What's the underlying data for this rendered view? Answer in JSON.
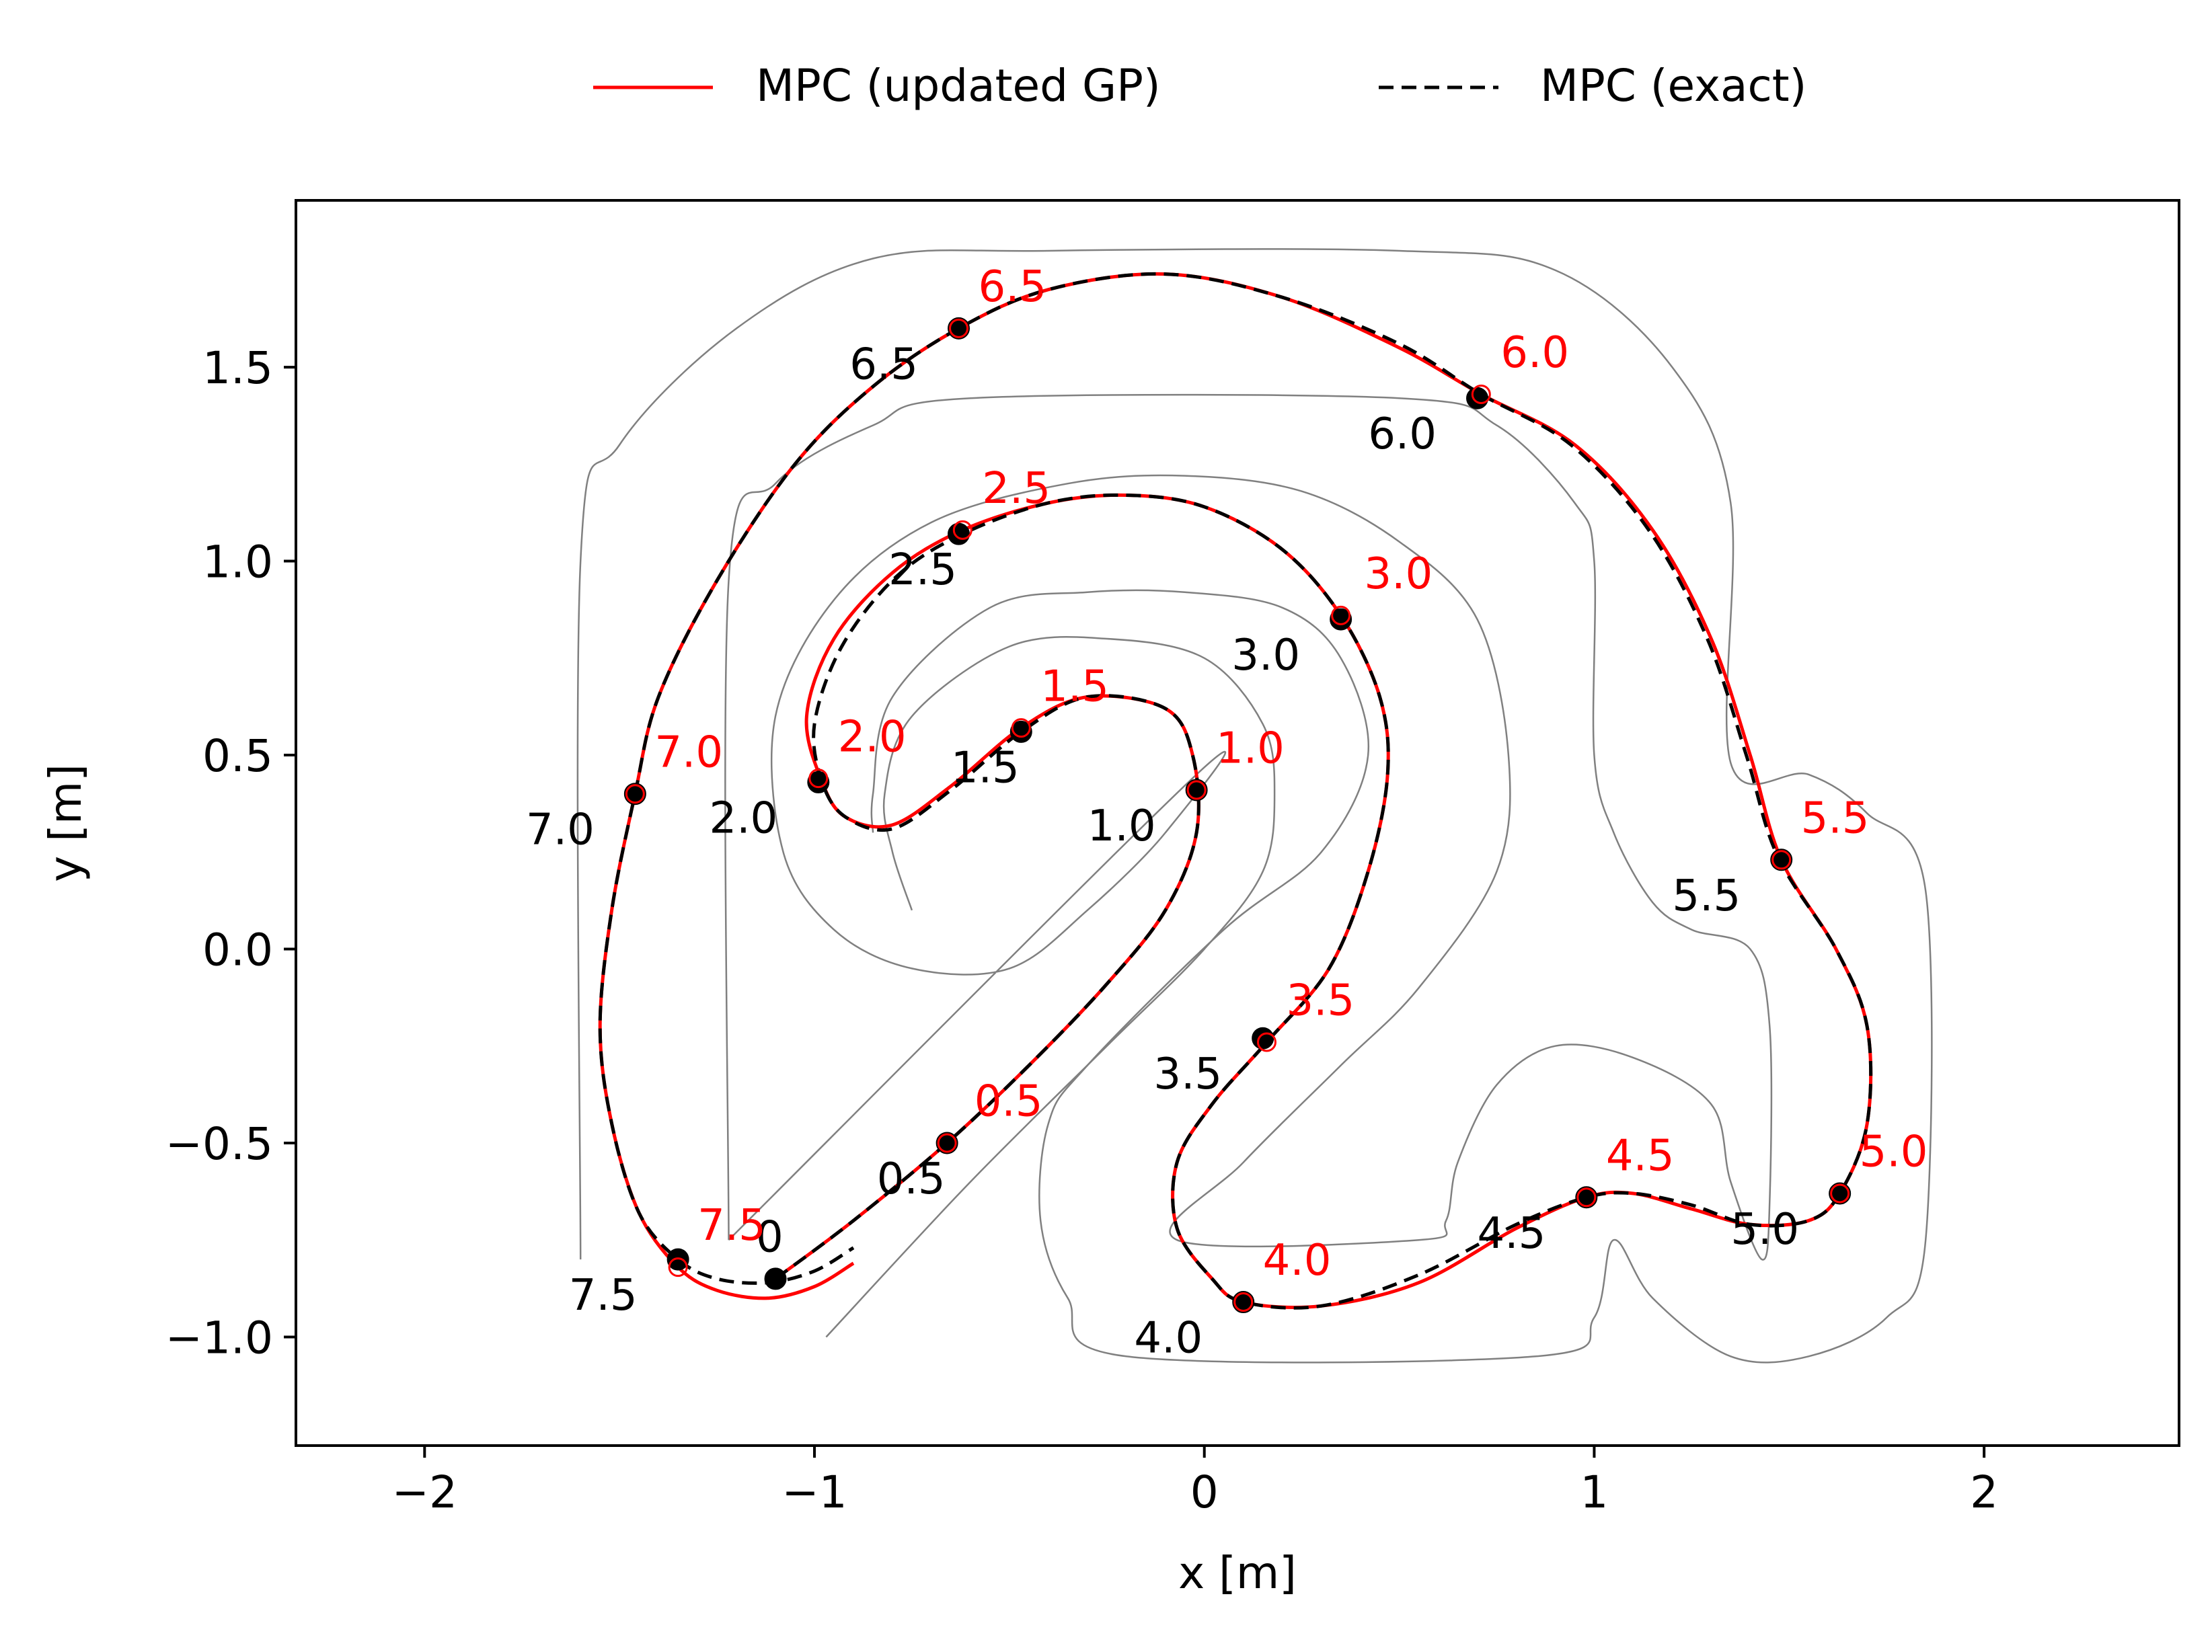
{
  "colors": {
    "gp": "#ff0000",
    "exact": "#000000",
    "track": "#808080",
    "axes": "#000000"
  },
  "legend": {
    "gp_label": "MPC (updated GP)",
    "exact_label": "MPC (exact)",
    "placement": "top-center-outside"
  },
  "chart_data": {
    "type": "line",
    "title": "",
    "xlabel": "x [m]",
    "ylabel": "y [m]",
    "xlim": [
      -2.33,
      2.5
    ],
    "ylim": [
      -1.28,
      1.93
    ],
    "grid": false,
    "xticks": [
      {
        "v": -2,
        "label": "−2"
      },
      {
        "v": -1,
        "label": "−1"
      },
      {
        "v": 0,
        "label": "0"
      },
      {
        "v": 1,
        "label": "1"
      },
      {
        "v": 2,
        "label": "2"
      }
    ],
    "yticks": [
      {
        "v": -1.0,
        "label": "−1.0"
      },
      {
        "v": -0.5,
        "label": "−0.5"
      },
      {
        "v": 0.0,
        "label": "0.0"
      },
      {
        "v": 0.5,
        "label": "0.5"
      },
      {
        "v": 1.0,
        "label": "1.0"
      },
      {
        "v": 1.5,
        "label": "1.5"
      }
    ],
    "series": [
      {
        "name": "MPC (updated GP)",
        "style": "solid",
        "color": "#ff0000",
        "points": [
          [
            -1.1,
            -0.85
          ],
          [
            -0.9,
            -0.7
          ],
          [
            -0.66,
            -0.5
          ],
          [
            -0.45,
            -0.3
          ],
          [
            -0.25,
            -0.09
          ],
          [
            -0.1,
            0.1
          ],
          [
            -0.02,
            0.3
          ],
          [
            -0.03,
            0.5
          ],
          [
            -0.1,
            0.62
          ],
          [
            -0.3,
            0.65
          ],
          [
            -0.47,
            0.57
          ],
          [
            -0.65,
            0.42
          ],
          [
            -0.8,
            0.32
          ],
          [
            -0.92,
            0.34
          ],
          [
            -0.98,
            0.43
          ],
          [
            -1.02,
            0.6
          ],
          [
            -0.95,
            0.8
          ],
          [
            -0.8,
            0.97
          ],
          [
            -0.62,
            1.08
          ],
          [
            -0.4,
            1.15
          ],
          [
            -0.2,
            1.17
          ],
          [
            0.0,
            1.14
          ],
          [
            0.2,
            1.03
          ],
          [
            0.35,
            0.86
          ],
          [
            0.45,
            0.65
          ],
          [
            0.47,
            0.45
          ],
          [
            0.42,
            0.2
          ],
          [
            0.32,
            -0.05
          ],
          [
            0.16,
            -0.24
          ],
          [
            0.02,
            -0.4
          ],
          [
            -0.07,
            -0.55
          ],
          [
            -0.07,
            -0.72
          ],
          [
            0.02,
            -0.85
          ],
          [
            0.1,
            -0.91
          ],
          [
            0.3,
            -0.92
          ],
          [
            0.55,
            -0.86
          ],
          [
            0.8,
            -0.72
          ],
          [
            0.98,
            -0.64
          ],
          [
            1.1,
            -0.63
          ],
          [
            1.25,
            -0.67
          ],
          [
            1.4,
            -0.71
          ],
          [
            1.55,
            -0.7
          ],
          [
            1.63,
            -0.63
          ],
          [
            1.7,
            -0.45
          ],
          [
            1.7,
            -0.2
          ],
          [
            1.62,
            0.0
          ],
          [
            1.48,
            0.23
          ],
          [
            1.4,
            0.5
          ],
          [
            1.3,
            0.8
          ],
          [
            1.15,
            1.08
          ],
          [
            0.95,
            1.3
          ],
          [
            0.71,
            1.43
          ],
          [
            0.5,
            1.55
          ],
          [
            0.2,
            1.68
          ],
          [
            -0.1,
            1.74
          ],
          [
            -0.4,
            1.7
          ],
          [
            -0.63,
            1.6
          ],
          [
            -0.85,
            1.45
          ],
          [
            -1.05,
            1.25
          ],
          [
            -1.25,
            0.95
          ],
          [
            -1.4,
            0.65
          ],
          [
            -1.46,
            0.4
          ],
          [
            -1.52,
            0.1
          ],
          [
            -1.55,
            -0.2
          ],
          [
            -1.52,
            -0.45
          ],
          [
            -1.45,
            -0.68
          ],
          [
            -1.35,
            -0.82
          ],
          [
            -1.25,
            -0.88
          ],
          [
            -1.12,
            -0.9
          ],
          [
            -1.0,
            -0.87
          ],
          [
            -0.9,
            -0.81
          ]
        ]
      },
      {
        "name": "MPC (exact)",
        "style": "dashed",
        "color": "#000000",
        "points": [
          [
            -1.1,
            -0.85
          ],
          [
            -0.9,
            -0.7
          ],
          [
            -0.66,
            -0.5
          ],
          [
            -0.45,
            -0.3
          ],
          [
            -0.25,
            -0.09
          ],
          [
            -0.1,
            0.1
          ],
          [
            -0.02,
            0.3
          ],
          [
            -0.03,
            0.5
          ],
          [
            -0.1,
            0.62
          ],
          [
            -0.3,
            0.65
          ],
          [
            -0.47,
            0.56
          ],
          [
            -0.65,
            0.41
          ],
          [
            -0.8,
            0.31
          ],
          [
            -0.92,
            0.34
          ],
          [
            -0.98,
            0.43
          ],
          [
            -1.0,
            0.58
          ],
          [
            -0.93,
            0.78
          ],
          [
            -0.79,
            0.96
          ],
          [
            -0.62,
            1.07
          ],
          [
            -0.4,
            1.15
          ],
          [
            -0.2,
            1.17
          ],
          [
            0.0,
            1.14
          ],
          [
            0.2,
            1.03
          ],
          [
            0.35,
            0.86
          ],
          [
            0.45,
            0.65
          ],
          [
            0.47,
            0.45
          ],
          [
            0.42,
            0.2
          ],
          [
            0.32,
            -0.05
          ],
          [
            0.16,
            -0.24
          ],
          [
            0.02,
            -0.4
          ],
          [
            -0.07,
            -0.55
          ],
          [
            -0.07,
            -0.72
          ],
          [
            0.02,
            -0.85
          ],
          [
            0.1,
            -0.91
          ],
          [
            0.3,
            -0.92
          ],
          [
            0.55,
            -0.84
          ],
          [
            0.8,
            -0.71
          ],
          [
            0.98,
            -0.64
          ],
          [
            1.1,
            -0.63
          ],
          [
            1.25,
            -0.66
          ],
          [
            1.4,
            -0.71
          ],
          [
            1.55,
            -0.7
          ],
          [
            1.63,
            -0.63
          ],
          [
            1.7,
            -0.45
          ],
          [
            1.7,
            -0.2
          ],
          [
            1.62,
            0.0
          ],
          [
            1.47,
            0.24
          ],
          [
            1.39,
            0.5
          ],
          [
            1.29,
            0.8
          ],
          [
            1.14,
            1.08
          ],
          [
            0.94,
            1.3
          ],
          [
            0.71,
            1.43
          ],
          [
            0.5,
            1.56
          ],
          [
            0.2,
            1.68
          ],
          [
            -0.1,
            1.74
          ],
          [
            -0.4,
            1.7
          ],
          [
            -0.63,
            1.6
          ],
          [
            -0.85,
            1.45
          ],
          [
            -1.05,
            1.25
          ],
          [
            -1.25,
            0.95
          ],
          [
            -1.4,
            0.65
          ],
          [
            -1.46,
            0.4
          ],
          [
            -1.52,
            0.1
          ],
          [
            -1.55,
            -0.2
          ],
          [
            -1.52,
            -0.45
          ],
          [
            -1.45,
            -0.68
          ],
          [
            -1.35,
            -0.8
          ],
          [
            -1.25,
            -0.85
          ],
          [
            -1.12,
            -0.86
          ],
          [
            -1.0,
            -0.83
          ],
          [
            -0.9,
            -0.77
          ]
        ]
      }
    ],
    "markers": {
      "gp": [
        {
          "x": -0.66,
          "y": -0.5,
          "label": "0.5",
          "lx": -0.59,
          "ly": -0.43
        },
        {
          "x": -0.02,
          "y": 0.41,
          "label": "1.0",
          "lx": 0.03,
          "ly": 0.48
        },
        {
          "x": -0.47,
          "y": 0.57,
          "label": "1.5",
          "lx": -0.42,
          "ly": 0.64
        },
        {
          "x": -0.99,
          "y": 0.44,
          "label": "2.0",
          "lx": -0.94,
          "ly": 0.51
        },
        {
          "x": -0.62,
          "y": 1.08,
          "label": "2.5",
          "lx": -0.57,
          "ly": 1.15
        },
        {
          "x": 0.35,
          "y": 0.86,
          "label": "3.0",
          "lx": 0.41,
          "ly": 0.93
        },
        {
          "x": 0.16,
          "y": -0.24,
          "label": "3.5",
          "lx": 0.21,
          "ly": -0.17
        },
        {
          "x": 0.1,
          "y": -0.91,
          "label": "4.0",
          "lx": 0.15,
          "ly": -0.84
        },
        {
          "x": 0.98,
          "y": -0.64,
          "label": "4.5",
          "lx": 1.03,
          "ly": -0.57
        },
        {
          "x": 1.63,
          "y": -0.63,
          "label": "5.0",
          "lx": 1.68,
          "ly": -0.56
        },
        {
          "x": 1.48,
          "y": 0.23,
          "label": "5.5",
          "lx": 1.53,
          "ly": 0.3
        },
        {
          "x": 0.71,
          "y": 1.43,
          "label": "6.0",
          "lx": 0.76,
          "ly": 1.5
        },
        {
          "x": -0.63,
          "y": 1.6,
          "label": "6.5",
          "lx": -0.58,
          "ly": 1.67
        },
        {
          "x": -1.46,
          "y": 0.4,
          "label": "7.0",
          "lx": -1.41,
          "ly": 0.47
        },
        {
          "x": -1.35,
          "y": -0.82,
          "label": "7.5",
          "lx": -1.3,
          "ly": -0.75
        }
      ],
      "exact": [
        {
          "x": -1.1,
          "y": -0.85,
          "label": "0",
          "lx": -1.15,
          "ly": -0.78
        },
        {
          "x": -0.66,
          "y": -0.5,
          "label": "0.5",
          "lx": -0.84,
          "ly": -0.63
        },
        {
          "x": -0.02,
          "y": 0.41,
          "label": "1.0",
          "lx": -0.3,
          "ly": 0.28
        },
        {
          "x": -0.47,
          "y": 0.56,
          "label": "1.5",
          "lx": -0.65,
          "ly": 0.43
        },
        {
          "x": -0.99,
          "y": 0.43,
          "label": "2.0",
          "lx": -1.27,
          "ly": 0.3
        },
        {
          "x": -0.63,
          "y": 1.07,
          "label": "2.5",
          "lx": -0.81,
          "ly": 0.94
        },
        {
          "x": 0.35,
          "y": 0.85,
          "label": "3.0",
          "lx": 0.07,
          "ly": 0.72
        },
        {
          "x": 0.15,
          "y": -0.23,
          "label": "3.5",
          "lx": -0.13,
          "ly": -0.36
        },
        {
          "x": 0.1,
          "y": -0.91,
          "label": "4.0",
          "lx": -0.18,
          "ly": -1.04
        },
        {
          "x": 0.98,
          "y": -0.64,
          "label": "4.5",
          "lx": 0.7,
          "ly": -0.77
        },
        {
          "x": 1.63,
          "y": -0.63,
          "label": "5.0",
          "lx": 1.35,
          "ly": -0.76
        },
        {
          "x": 1.48,
          "y": 0.23,
          "label": "5.5",
          "lx": 1.2,
          "ly": 0.1
        },
        {
          "x": 0.7,
          "y": 1.42,
          "label": "6.0",
          "lx": 0.42,
          "ly": 1.29
        },
        {
          "x": -0.63,
          "y": 1.6,
          "label": "6.5",
          "lx": -0.91,
          "ly": 1.47
        },
        {
          "x": -1.46,
          "y": 0.4,
          "label": "7.0",
          "lx": -1.74,
          "ly": 0.27
        },
        {
          "x": -1.35,
          "y": -0.8,
          "label": "7.5",
          "lx": -1.63,
          "ly": -0.93
        }
      ]
    },
    "track_boundaries": [
      [
        [
          -1.6,
          -0.8
        ],
        [
          -1.6,
          1.0
        ],
        [
          -1.5,
          1.3
        ],
        [
          -1.2,
          1.6
        ],
        [
          -0.85,
          1.78
        ],
        [
          -0.4,
          1.8
        ],
        [
          0.5,
          1.8
        ],
        [
          0.9,
          1.75
        ],
        [
          1.2,
          1.5
        ],
        [
          1.35,
          1.15
        ],
        [
          1.35,
          0.48
        ],
        [
          1.55,
          0.45
        ],
        [
          1.7,
          0.35
        ],
        [
          1.85,
          0.15
        ],
        [
          1.85,
          -0.75
        ],
        [
          1.75,
          -0.95
        ],
        [
          1.55,
          -1.05
        ],
        [
          1.35,
          -1.05
        ],
        [
          1.15,
          -0.9
        ],
        [
          1.05,
          -0.75
        ],
        [
          1.0,
          -0.95
        ],
        [
          0.85,
          -1.05
        ],
        [
          -0.2,
          -1.05
        ],
        [
          -0.35,
          -0.9
        ],
        [
          -0.42,
          -0.7
        ],
        [
          -0.4,
          -0.45
        ],
        [
          -0.3,
          -0.3
        ],
        [
          0.05,
          0.05
        ],
        [
          0.3,
          0.25
        ],
        [
          0.42,
          0.5
        ],
        [
          0.35,
          0.75
        ],
        [
          0.2,
          0.88
        ],
        [
          -0.05,
          0.92
        ],
        [
          -0.3,
          0.92
        ],
        [
          -0.55,
          0.88
        ],
        [
          -0.8,
          0.65
        ],
        [
          -0.85,
          0.4
        ],
        [
          -0.85,
          0.3
        ]
      ],
      [
        [
          -1.22,
          -0.75
        ],
        [
          -1.22,
          0.95
        ],
        [
          -1.1,
          1.2
        ],
        [
          -0.85,
          1.35
        ],
        [
          -0.6,
          1.42
        ],
        [
          0.5,
          1.42
        ],
        [
          0.75,
          1.35
        ],
        [
          0.95,
          1.15
        ],
        [
          1.0,
          1.0
        ],
        [
          1.0,
          0.5
        ],
        [
          1.05,
          0.3
        ],
        [
          1.15,
          0.12
        ],
        [
          1.25,
          0.05
        ],
        [
          1.4,
          0.0
        ],
        [
          1.45,
          -0.2
        ],
        [
          1.45,
          -0.65
        ],
        [
          1.43,
          -0.8
        ],
        [
          1.35,
          -0.6
        ],
        [
          1.3,
          -0.4
        ],
        [
          1.1,
          -0.28
        ],
        [
          0.9,
          -0.25
        ],
        [
          0.75,
          -0.35
        ],
        [
          0.65,
          -0.55
        ],
        [
          0.62,
          -0.7
        ],
        [
          0.55,
          -0.75
        ],
        [
          -0.07,
          -0.75
        ],
        [
          0.1,
          -0.55
        ],
        [
          0.35,
          -0.3
        ],
        [
          0.55,
          -0.1
        ],
        [
          0.75,
          0.2
        ],
        [
          0.78,
          0.5
        ],
        [
          0.7,
          0.85
        ],
        [
          0.5,
          1.05
        ],
        [
          0.25,
          1.18
        ],
        [
          -0.05,
          1.22
        ],
        [
          -0.35,
          1.2
        ],
        [
          -0.7,
          1.1
        ],
        [
          -0.95,
          0.9
        ],
        [
          -1.1,
          0.6
        ],
        [
          -1.08,
          0.25
        ],
        [
          -0.95,
          0.05
        ],
        [
          -0.75,
          -0.05
        ],
        [
          -0.5,
          -0.05
        ],
        [
          -0.3,
          0.1
        ],
        [
          -0.1,
          0.3
        ],
        [
          -0.02,
          0.45
        ],
        [
          -1.22,
          -0.75
        ]
      ],
      [
        [
          -0.97,
          -1.0
        ],
        [
          -0.6,
          -0.6
        ],
        [
          -0.25,
          -0.25
        ],
        [
          0.0,
          0.0
        ],
        [
          0.15,
          0.2
        ],
        [
          0.18,
          0.4
        ],
        [
          0.15,
          0.58
        ],
        [
          0.0,
          0.75
        ],
        [
          -0.25,
          0.8
        ],
        [
          -0.5,
          0.78
        ],
        [
          -0.75,
          0.6
        ],
        [
          -0.82,
          0.4
        ],
        [
          -0.8,
          0.25
        ],
        [
          -0.75,
          0.1
        ]
      ]
    ]
  }
}
